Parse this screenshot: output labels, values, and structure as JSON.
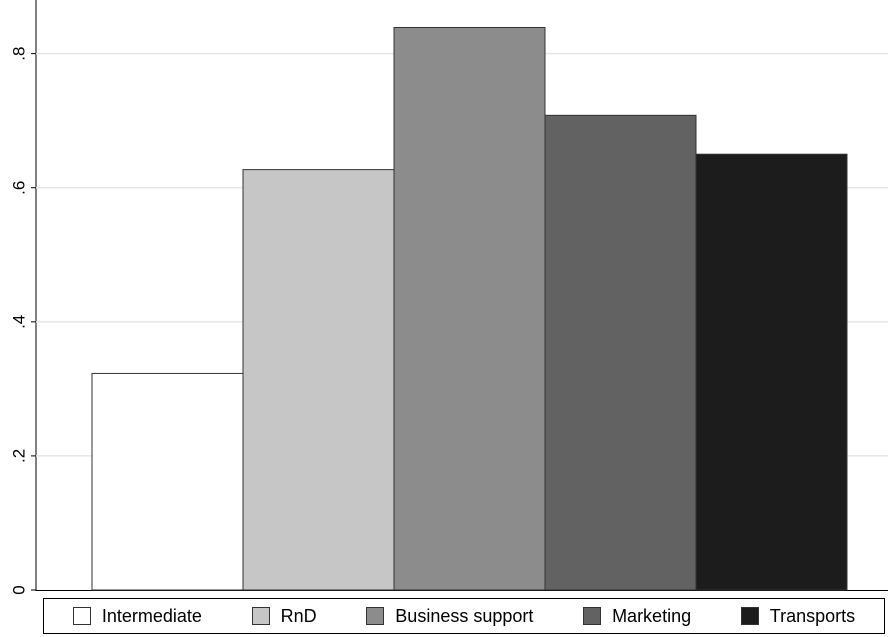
{
  "chart_data": {
    "type": "bar",
    "categories": [
      "Intermediate",
      "RnD",
      "Business support",
      "Marketing",
      "Transports"
    ],
    "values": [
      0.323,
      0.627,
      0.839,
      0.708,
      0.65
    ],
    "colors": [
      "#ffffff",
      "#c6c6c6",
      "#8c8c8c",
      "#626262",
      "#1c1c1c"
    ],
    "ylim": [
      0,
      0.88
    ],
    "yticks": [
      0,
      0.2,
      0.4,
      0.6,
      0.8
    ],
    "ytick_labels": [
      "0",
      ".2",
      ".4",
      ".6",
      ".8"
    ],
    "grid": true,
    "legend_position": "bottom",
    "title": "",
    "xlabel": "",
    "ylabel": ""
  }
}
